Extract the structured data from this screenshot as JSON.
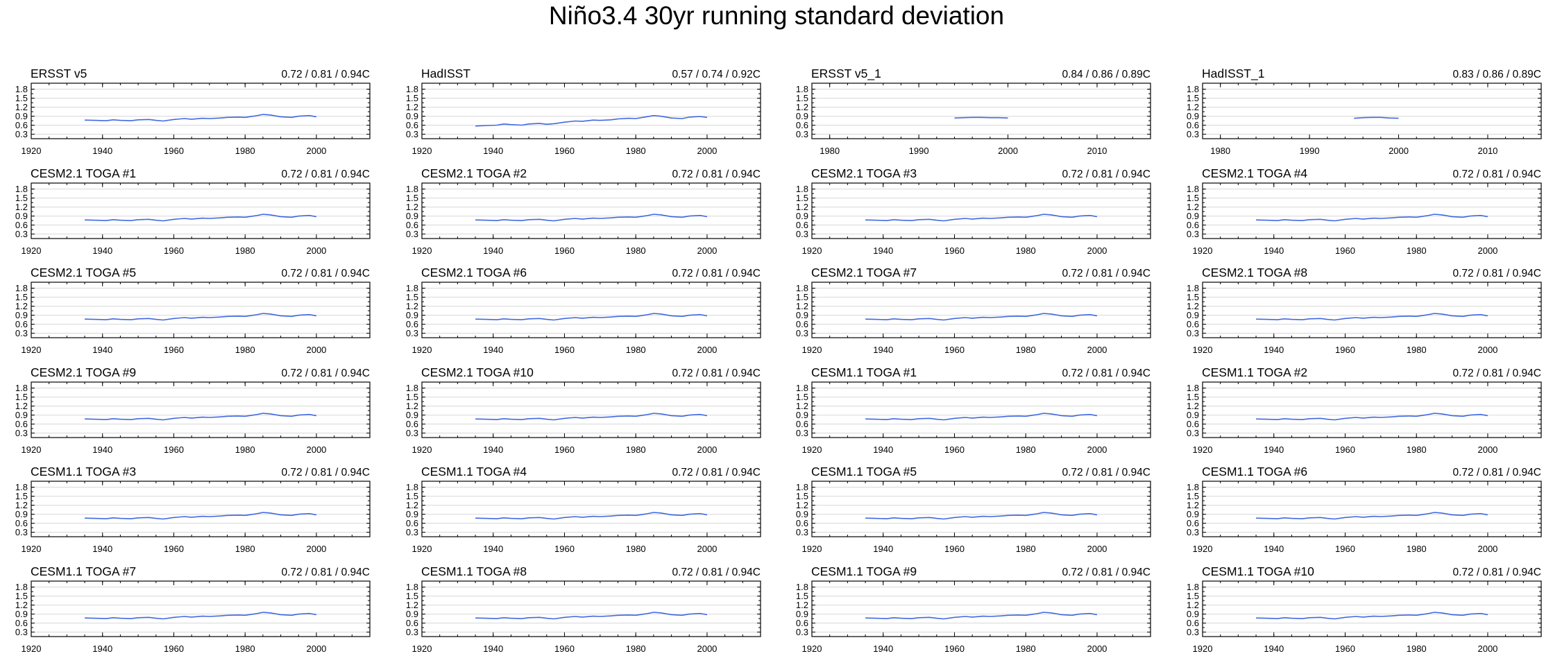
{
  "colors": {
    "series": "#4169e1",
    "grid": "#d8d8d8",
    "axis": "#000000"
  },
  "chart_data": {
    "title": "Niño3.4 30yr running standard deviation",
    "type": "line",
    "shared_y": {
      "ylim": [
        0.15,
        2.0
      ],
      "yticks": [
        0.3,
        0.6,
        0.9,
        1.2,
        1.5,
        1.8
      ],
      "ytick_labels": [
        "0.3",
        "0.6",
        "0.9",
        "1.2",
        "1.5",
        "1.8"
      ]
    },
    "series_templates": {
      "ersst": {
        "x": [
          1935,
          1938,
          1941,
          1943,
          1945,
          1948,
          1950,
          1953,
          1955,
          1957,
          1960,
          1963,
          1965,
          1968,
          1970,
          1973,
          1975,
          1978,
          1980,
          1983,
          1985,
          1987,
          1990,
          1993,
          1995,
          1998,
          2000
        ],
        "y": [
          0.77,
          0.76,
          0.75,
          0.78,
          0.76,
          0.75,
          0.78,
          0.79,
          0.76,
          0.74,
          0.79,
          0.82,
          0.8,
          0.83,
          0.82,
          0.84,
          0.86,
          0.87,
          0.86,
          0.91,
          0.96,
          0.94,
          0.88,
          0.86,
          0.9,
          0.92,
          0.88
        ]
      },
      "hadisst": {
        "x": [
          1935,
          1938,
          1941,
          1943,
          1945,
          1948,
          1950,
          1953,
          1955,
          1957,
          1960,
          1963,
          1965,
          1968,
          1970,
          1973,
          1975,
          1978,
          1980,
          1983,
          1985,
          1987,
          1990,
          1993,
          1995,
          1998,
          2000
        ],
        "y": [
          0.57,
          0.59,
          0.6,
          0.64,
          0.62,
          0.6,
          0.64,
          0.66,
          0.63,
          0.65,
          0.7,
          0.74,
          0.73,
          0.77,
          0.76,
          0.78,
          0.81,
          0.83,
          0.82,
          0.88,
          0.92,
          0.9,
          0.84,
          0.82,
          0.87,
          0.89,
          0.86
        ]
      },
      "ersst_1": {
        "x": [
          1994,
          1995,
          1996,
          1997,
          1998,
          1999,
          2000
        ],
        "y": [
          0.84,
          0.85,
          0.86,
          0.86,
          0.85,
          0.85,
          0.84
        ]
      },
      "hadisst_1": {
        "x": [
          1995,
          1996,
          1997,
          1998,
          1999,
          2000
        ],
        "y": [
          0.83,
          0.85,
          0.86,
          0.86,
          0.84,
          0.83
        ]
      }
    },
    "panels": [
      {
        "title": "ERSST v5",
        "stats": "0.72 / 0.81 / 0.94C",
        "xlim": [
          1920,
          2015
        ],
        "xticks": [
          1920,
          1940,
          1960,
          1980,
          2000
        ],
        "xtick_labels": [
          "1920",
          "1940",
          "1960",
          "1980",
          "2000"
        ],
        "series": "ersst"
      },
      {
        "title": "HadISST",
        "stats": "0.57 / 0.74 / 0.92C",
        "xlim": [
          1920,
          2015
        ],
        "xticks": [
          1920,
          1940,
          1960,
          1980,
          2000
        ],
        "xtick_labels": [
          "1920",
          "1940",
          "1960",
          "1980",
          "2000"
        ],
        "series": "hadisst"
      },
      {
        "title": "ERSST v5_1",
        "stats": "0.84 / 0.86 / 0.89C",
        "xlim": [
          1978,
          2016
        ],
        "xticks": [
          1980,
          1990,
          2000,
          2010
        ],
        "xtick_labels": [
          "1980",
          "1990",
          "2000",
          "2010"
        ],
        "series": "ersst_1"
      },
      {
        "title": "HadISST_1",
        "stats": "0.83 / 0.86 / 0.89C",
        "xlim": [
          1978,
          2016
        ],
        "xticks": [
          1980,
          1990,
          2000,
          2010
        ],
        "xtick_labels": [
          "1980",
          "1990",
          "2000",
          "2010"
        ],
        "series": "hadisst_1"
      },
      {
        "title": "CESM2.1 TOGA #1",
        "stats": "0.72 / 0.81 / 0.94C",
        "xlim": [
          1920,
          2015
        ],
        "xticks": [
          1920,
          1940,
          1960,
          1980,
          2000
        ],
        "xtick_labels": [
          "1920",
          "1940",
          "1960",
          "1980",
          "2000"
        ],
        "series": "ersst"
      },
      {
        "title": "CESM2.1 TOGA #2",
        "stats": "0.72 / 0.81 / 0.94C",
        "xlim": [
          1920,
          2015
        ],
        "xticks": [
          1920,
          1940,
          1960,
          1980,
          2000
        ],
        "xtick_labels": [
          "1920",
          "1940",
          "1960",
          "1980",
          "2000"
        ],
        "series": "ersst"
      },
      {
        "title": "CESM2.1 TOGA #3",
        "stats": "0.72 / 0.81 / 0.94C",
        "xlim": [
          1920,
          2015
        ],
        "xticks": [
          1920,
          1940,
          1960,
          1980,
          2000
        ],
        "xtick_labels": [
          "1920",
          "1940",
          "1960",
          "1980",
          "2000"
        ],
        "series": "ersst"
      },
      {
        "title": "CESM2.1 TOGA #4",
        "stats": "0.72 / 0.81 / 0.94C",
        "xlim": [
          1920,
          2015
        ],
        "xticks": [
          1920,
          1940,
          1960,
          1980,
          2000
        ],
        "xtick_labels": [
          "1920",
          "1940",
          "1960",
          "1980",
          "2000"
        ],
        "series": "ersst"
      },
      {
        "title": "CESM2.1 TOGA #5",
        "stats": "0.72 / 0.81 / 0.94C",
        "xlim": [
          1920,
          2015
        ],
        "xticks": [
          1920,
          1940,
          1960,
          1980,
          2000
        ],
        "xtick_labels": [
          "1920",
          "1940",
          "1960",
          "1980",
          "2000"
        ],
        "series": "ersst"
      },
      {
        "title": "CESM2.1 TOGA #6",
        "stats": "0.72 / 0.81 / 0.94C",
        "xlim": [
          1920,
          2015
        ],
        "xticks": [
          1920,
          1940,
          1960,
          1980,
          2000
        ],
        "xtick_labels": [
          "1920",
          "1940",
          "1960",
          "1980",
          "2000"
        ],
        "series": "ersst"
      },
      {
        "title": "CESM2.1 TOGA #7",
        "stats": "0.72 / 0.81 / 0.94C",
        "xlim": [
          1920,
          2015
        ],
        "xticks": [
          1920,
          1940,
          1960,
          1980,
          2000
        ],
        "xtick_labels": [
          "1920",
          "1940",
          "1960",
          "1980",
          "2000"
        ],
        "series": "ersst"
      },
      {
        "title": "CESM2.1 TOGA #8",
        "stats": "0.72 / 0.81 / 0.94C",
        "xlim": [
          1920,
          2015
        ],
        "xticks": [
          1920,
          1940,
          1960,
          1980,
          2000
        ],
        "xtick_labels": [
          "1920",
          "1940",
          "1960",
          "1980",
          "2000"
        ],
        "series": "ersst"
      },
      {
        "title": "CESM2.1 TOGA #9",
        "stats": "0.72 / 0.81 / 0.94C",
        "xlim": [
          1920,
          2015
        ],
        "xticks": [
          1920,
          1940,
          1960,
          1980,
          2000
        ],
        "xtick_labels": [
          "1920",
          "1940",
          "1960",
          "1980",
          "2000"
        ],
        "series": "ersst"
      },
      {
        "title": "CESM2.1 TOGA #10",
        "stats": "0.72 / 0.81 / 0.94C",
        "xlim": [
          1920,
          2015
        ],
        "xticks": [
          1920,
          1940,
          1960,
          1980,
          2000
        ],
        "xtick_labels": [
          "1920",
          "1940",
          "1960",
          "1980",
          "2000"
        ],
        "series": "ersst"
      },
      {
        "title": "CESM1.1 TOGA #1",
        "stats": "0.72 / 0.81 / 0.94C",
        "xlim": [
          1920,
          2015
        ],
        "xticks": [
          1920,
          1940,
          1960,
          1980,
          2000
        ],
        "xtick_labels": [
          "1920",
          "1940",
          "1960",
          "1980",
          "2000"
        ],
        "series": "ersst"
      },
      {
        "title": "CESM1.1 TOGA #2",
        "stats": "0.72 / 0.81 / 0.94C",
        "xlim": [
          1920,
          2015
        ],
        "xticks": [
          1920,
          1940,
          1960,
          1980,
          2000
        ],
        "xtick_labels": [
          "1920",
          "1940",
          "1960",
          "1980",
          "2000"
        ],
        "series": "ersst"
      },
      {
        "title": "CESM1.1 TOGA #3",
        "stats": "0.72 / 0.81 / 0.94C",
        "xlim": [
          1920,
          2015
        ],
        "xticks": [
          1920,
          1940,
          1960,
          1980,
          2000
        ],
        "xtick_labels": [
          "1920",
          "1940",
          "1960",
          "1980",
          "2000"
        ],
        "series": "ersst"
      },
      {
        "title": "CESM1.1 TOGA #4",
        "stats": "0.72 / 0.81 / 0.94C",
        "xlim": [
          1920,
          2015
        ],
        "xticks": [
          1920,
          1940,
          1960,
          1980,
          2000
        ],
        "xtick_labels": [
          "1920",
          "1940",
          "1960",
          "1980",
          "2000"
        ],
        "series": "ersst"
      },
      {
        "title": "CESM1.1 TOGA #5",
        "stats": "0.72 / 0.81 / 0.94C",
        "xlim": [
          1920,
          2015
        ],
        "xticks": [
          1920,
          1940,
          1960,
          1980,
          2000
        ],
        "xtick_labels": [
          "1920",
          "1940",
          "1960",
          "1980",
          "2000"
        ],
        "series": "ersst"
      },
      {
        "title": "CESM1.1 TOGA #6",
        "stats": "0.72 / 0.81 / 0.94C",
        "xlim": [
          1920,
          2015
        ],
        "xticks": [
          1920,
          1940,
          1960,
          1980,
          2000
        ],
        "xtick_labels": [
          "1920",
          "1940",
          "1960",
          "1980",
          "2000"
        ],
        "series": "ersst"
      },
      {
        "title": "CESM1.1 TOGA #7",
        "stats": "0.72 / 0.81 / 0.94C",
        "xlim": [
          1920,
          2015
        ],
        "xticks": [
          1920,
          1940,
          1960,
          1980,
          2000
        ],
        "xtick_labels": [
          "1920",
          "1940",
          "1960",
          "1980",
          "2000"
        ],
        "series": "ersst"
      },
      {
        "title": "CESM1.1 TOGA #8",
        "stats": "0.72 / 0.81 / 0.94C",
        "xlim": [
          1920,
          2015
        ],
        "xticks": [
          1920,
          1940,
          1960,
          1980,
          2000
        ],
        "xtick_labels": [
          "1920",
          "1940",
          "1960",
          "1980",
          "2000"
        ],
        "series": "ersst"
      },
      {
        "title": "CESM1.1 TOGA #9",
        "stats": "0.72 / 0.81 / 0.94C",
        "xlim": [
          1920,
          2015
        ],
        "xticks": [
          1920,
          1940,
          1960,
          1980,
          2000
        ],
        "xtick_labels": [
          "1920",
          "1940",
          "1960",
          "1980",
          "2000"
        ],
        "series": "ersst"
      },
      {
        "title": "CESM1.1 TOGA #10",
        "stats": "0.72 / 0.81 / 0.94C",
        "xlim": [
          1920,
          2015
        ],
        "xticks": [
          1920,
          1940,
          1960,
          1980,
          2000
        ],
        "xtick_labels": [
          "1920",
          "1940",
          "1960",
          "1980",
          "2000"
        ],
        "series": "ersst"
      }
    ]
  }
}
